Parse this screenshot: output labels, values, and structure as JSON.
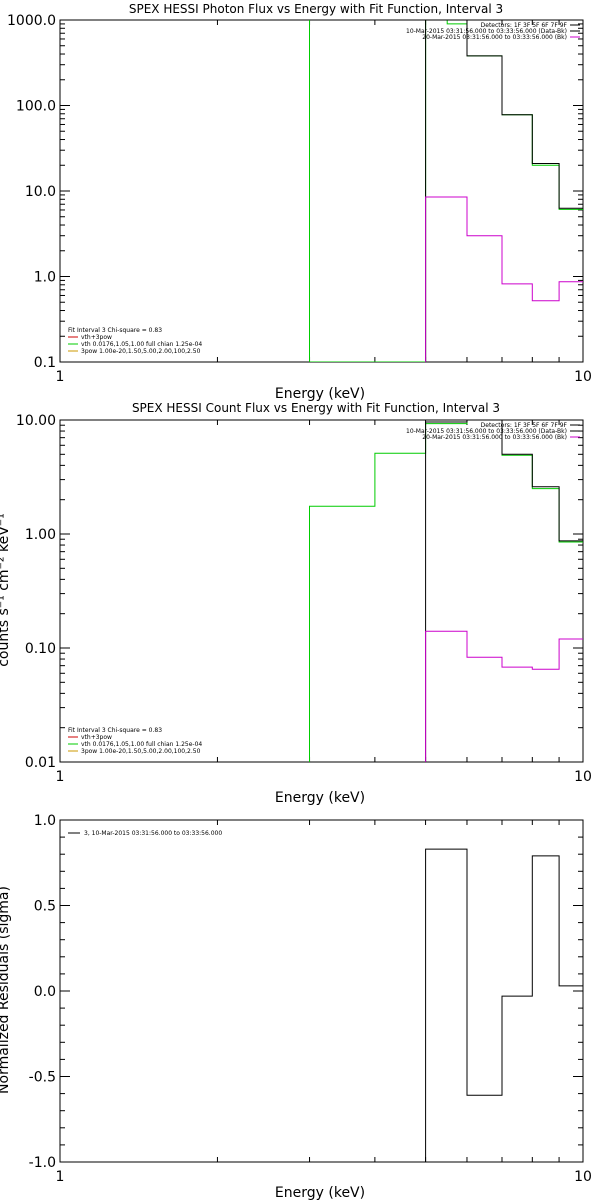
{
  "colors": {
    "black": "#000000",
    "green": "#00cc00",
    "magenta": "#cc00cc",
    "red": "#cc0000"
  },
  "chart_data": [
    {
      "type": "line",
      "title": "SPEX HESSI Photon Flux vs Energy with Fit Function, Interval 3",
      "xlabel": "Energy (keV)",
      "ylabel": "",
      "xscale": "log",
      "yscale": "log",
      "xlim": [
        1,
        10
      ],
      "ylim": [
        0.1,
        1000
      ],
      "x_tick_labels": [
        "1",
        "10"
      ],
      "y_tick_labels": [
        "0.1",
        "1.0",
        "10.0",
        "100.0",
        "1000.0"
      ],
      "legend_top": {
        "placement": "top-right",
        "entries": [
          {
            "text": "Detectors: 1F 3F 5F 6F 7F 9F",
            "color": "#000000"
          },
          {
            "text": "10-Mar-2015 03:31:56.000 to 03:33:56.000 (Data-Bk)",
            "color": "#000000"
          },
          {
            "text": "20-Mar-2015 03:31:56.000 to 03:33:56.000 (Bk)",
            "color": "#cc00cc"
          }
        ]
      },
      "legend_bottom": {
        "placement": "bottom-left",
        "entries": [
          {
            "text": "Fit Interval 3   Chi-square = 0.83",
            "color": "#000000"
          },
          {
            "text": "vth+3pow",
            "color": "#cc0000"
          },
          {
            "text": "vth 0.0176,1.05,1.00  full chian 1.25e-04",
            "color": "#00cc00"
          },
          {
            "text": "3pow 1.00e-20,1.50,5.00,2.00,100,2.50",
            "color": "#cc9900"
          }
        ]
      },
      "series": [
        {
          "color": "#00cc00",
          "x": [
            3,
            3,
            3,
            5,
            5,
            5.5,
            5.5,
            6,
            6,
            7,
            7,
            8,
            8,
            9,
            9,
            10
          ],
          "y": [
            0.1,
            1000,
            0.1,
            0.1,
            1000,
            1000,
            900,
            900,
            380,
            380,
            78,
            78,
            20,
            20,
            6.1,
            6.1
          ]
        },
        {
          "color": "#000000",
          "x": [
            5,
            5,
            6,
            6,
            7,
            7,
            8,
            8,
            9,
            9,
            10
          ],
          "y": [
            0.1,
            1000,
            1000,
            380,
            380,
            78,
            78,
            21,
            21,
            6.3,
            6.3
          ]
        },
        {
          "color": "#cc00cc",
          "x": [
            5,
            5,
            6,
            6,
            7,
            7,
            8,
            8,
            9,
            9,
            10
          ],
          "y": [
            0.1,
            8.5,
            8.5,
            3.0,
            3.0,
            0.82,
            0.82,
            0.52,
            0.52,
            0.87,
            0.87
          ]
        }
      ]
    },
    {
      "type": "line",
      "title": "SPEX HESSI Count Flux vs Energy with Fit Function, Interval 3",
      "xlabel": "Energy (keV)",
      "ylabel": "counts s⁻¹ cm⁻² keV⁻¹",
      "xscale": "log",
      "yscale": "log",
      "xlim": [
        1,
        10
      ],
      "ylim": [
        0.01,
        10
      ],
      "x_tick_labels": [
        "1",
        "10"
      ],
      "y_tick_labels": [
        "0.01",
        "0.10",
        "1.00",
        "10.00"
      ],
      "legend_top": {
        "placement": "top-right",
        "entries": [
          {
            "text": "Detectors: 1F 3F 5F 6F 7F 9F",
            "color": "#000000"
          },
          {
            "text": "10-Mar-2015 03:31:56.000 to 03:33:56.000 (Data-Bk)",
            "color": "#000000"
          },
          {
            "text": "20-Mar-2015 03:31:56.000 to 03:33:56.000 (Bk)",
            "color": "#cc00cc"
          }
        ]
      },
      "legend_bottom": {
        "placement": "bottom-left",
        "entries": [
          {
            "text": "Fit Interval 3   Chi-square = 0.83",
            "color": "#000000"
          },
          {
            "text": "vth+3pow",
            "color": "#cc0000"
          },
          {
            "text": "vth 0.0176,1.05,1.00  full chian 1.25e-04",
            "color": "#00cc00"
          },
          {
            "text": "3pow 1.00e-20,1.50,5.00,2.00,100,2.50",
            "color": "#cc9900"
          }
        ]
      },
      "series": [
        {
          "color": "#00cc00",
          "x": [
            3,
            3,
            4,
            4,
            5,
            5,
            6,
            6,
            7,
            7,
            8,
            8,
            9,
            9,
            10
          ],
          "y": [
            0.01,
            1.75,
            1.75,
            5.1,
            5.1,
            9.3,
            9.3,
            10,
            10,
            4.9,
            4.9,
            2.5,
            2.5,
            0.85,
            0.85
          ]
        },
        {
          "color": "#000000",
          "x": [
            5,
            5,
            6,
            6,
            7,
            7,
            8,
            8,
            9,
            9,
            10
          ],
          "y": [
            0.01,
            9.6,
            9.6,
            10,
            10,
            5.0,
            5.0,
            2.6,
            2.6,
            0.87,
            0.87
          ]
        },
        {
          "color": "#cc00cc",
          "x": [
            5,
            5,
            6,
            6,
            7,
            7,
            8,
            8,
            9,
            9,
            10
          ],
          "y": [
            0.01,
            0.14,
            0.14,
            0.083,
            0.083,
            0.068,
            0.068,
            0.065,
            0.065,
            0.12,
            0.12
          ]
        }
      ]
    },
    {
      "type": "line",
      "title": "",
      "xlabel": "Energy (keV)",
      "ylabel": "Normalized Residuals (sigma)",
      "xscale": "log",
      "yscale": "linear",
      "xlim": [
        1,
        10
      ],
      "ylim": [
        -1,
        1
      ],
      "x_tick_labels": [
        "1",
        "10"
      ],
      "y_tick_labels": [
        "-1.0",
        "-0.5",
        "0.0",
        "0.5",
        "1.0"
      ],
      "legend_top": {
        "placement": "top-left",
        "entries": [
          {
            "text": "3, 10-Mar-2015 03:31:56.000 to 03:33:56.000",
            "color": "#000000"
          }
        ]
      },
      "series": [
        {
          "color": "#000000",
          "x": [
            5,
            5,
            6,
            6,
            7,
            7,
            8,
            8,
            9,
            9,
            10
          ],
          "y": [
            -1,
            0.83,
            0.83,
            -0.61,
            -0.61,
            -0.03,
            -0.03,
            0.79,
            0.79,
            0.03,
            0.03
          ]
        }
      ]
    }
  ]
}
